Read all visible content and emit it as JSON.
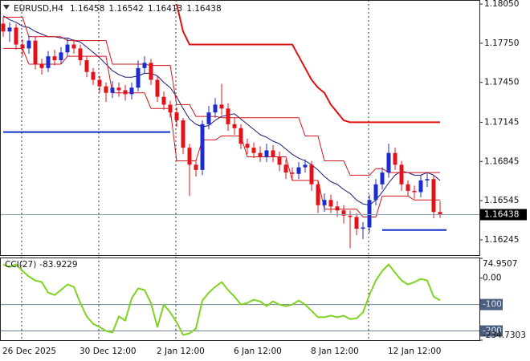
{
  "chart_data": [
    {
      "type": "candlestick",
      "symbol": "EURUSD,H4",
      "categories": [
        "26 Dec 2025",
        null,
        null,
        null,
        null,
        null,
        null,
        null,
        null,
        null,
        null,
        null,
        "30 Dec 12:00",
        null,
        null,
        null,
        null,
        null,
        null,
        null,
        null,
        null,
        null,
        null,
        "2 Jan 12:00",
        null,
        null,
        null,
        null,
        null,
        null,
        null,
        null,
        null,
        null,
        null,
        "6 Jan 12:00",
        null,
        null,
        null,
        null,
        null,
        null,
        null,
        null,
        null,
        null,
        null,
        "8 Jan 12:00",
        null,
        null,
        null,
        null,
        null,
        null,
        null,
        null,
        null,
        null,
        null,
        "12 Jan 12:00",
        null,
        null,
        null,
        null,
        null,
        null,
        null,
        null
      ],
      "open": [
        1.179,
        1.1784,
        1.1787,
        1.1774,
        1.1771,
        1.1777,
        1.1759,
        1.1756,
        1.1765,
        1.1762,
        1.1768,
        1.1774,
        1.1771,
        1.1762,
        1.1753,
        1.1747,
        1.1742,
        1.1737,
        1.1741,
        1.1739,
        1.1736,
        1.1741,
        1.1756,
        1.176,
        1.1747,
        1.1734,
        1.1728,
        1.1722,
        1.1716,
        1.1695,
        1.1682,
        1.1678,
        1.1713,
        1.1722,
        1.1728,
        1.1725,
        1.1713,
        1.171,
        1.1698,
        1.1695,
        1.1691,
        1.1688,
        1.1693,
        1.1688,
        1.1682,
        1.1676,
        1.1675,
        1.168,
        1.1682,
        1.1667,
        1.1651,
        1.1655,
        1.165,
        1.1647,
        1.1643,
        1.1642,
        1.1633,
        1.1634,
        1.1655,
        1.1667,
        1.1676,
        1.1691,
        1.1682,
        1.1667,
        1.1662,
        1.1661,
        1.167,
        1.1671,
        1.16458
      ],
      "high": [
        1.1795,
        1.1791,
        1.179,
        1.1778,
        1.1781,
        1.178,
        1.1763,
        1.1769,
        1.177,
        1.1772,
        1.1779,
        1.1778,
        1.1774,
        1.1765,
        1.1756,
        1.175,
        1.1745,
        1.1746,
        1.1745,
        1.1743,
        1.1745,
        1.1762,
        1.1765,
        1.1763,
        1.175,
        1.1738,
        1.1731,
        1.1726,
        1.1718,
        1.1698,
        1.1686,
        1.1716,
        1.1727,
        1.1733,
        1.1744,
        1.1729,
        1.1718,
        1.1713,
        1.1702,
        1.1699,
        1.1696,
        1.1698,
        1.1697,
        1.1692,
        1.1686,
        1.168,
        1.1684,
        1.1686,
        1.1685,
        1.167,
        1.166,
        1.1659,
        1.1654,
        1.1651,
        1.1647,
        1.1645,
        1.1638,
        1.1659,
        1.1671,
        1.168,
        1.1698,
        1.1695,
        1.1685,
        1.167,
        1.1666,
        1.1674,
        1.1676,
        1.1674,
        1.16542
      ],
      "low": [
        1.178,
        1.1776,
        1.177,
        1.1765,
        1.1767,
        1.1755,
        1.1751,
        1.1753,
        1.1758,
        1.1759,
        1.1765,
        1.1767,
        1.1758,
        1.1749,
        1.1743,
        1.1737,
        1.173,
        1.1733,
        1.1734,
        1.1731,
        1.1732,
        1.1738,
        1.1752,
        1.1743,
        1.173,
        1.1724,
        1.1718,
        1.1711,
        1.169,
        1.1658,
        1.1673,
        1.1674,
        1.1709,
        1.1718,
        1.172,
        1.1708,
        1.1705,
        1.1694,
        1.169,
        1.1687,
        1.1684,
        1.1684,
        1.1684,
        1.1677,
        1.1671,
        1.167,
        1.1671,
        1.1676,
        1.1662,
        1.1645,
        1.1646,
        1.1645,
        1.1642,
        1.1637,
        1.1618,
        1.1628,
        1.1625,
        1.163,
        1.1651,
        1.1663,
        1.1672,
        1.1678,
        1.1662,
        1.1658,
        1.1656,
        1.1657,
        1.1665,
        1.1641,
        1.16413
      ],
      "close": [
        1.1784,
        1.1787,
        1.1774,
        1.1771,
        1.1777,
        1.1759,
        1.1756,
        1.1765,
        1.1762,
        1.1768,
        1.1774,
        1.1771,
        1.1762,
        1.1753,
        1.1747,
        1.1742,
        1.1737,
        1.1741,
        1.1739,
        1.1736,
        1.1741,
        1.1756,
        1.176,
        1.1747,
        1.1734,
        1.1728,
        1.1722,
        1.1716,
        1.1695,
        1.1682,
        1.1678,
        1.1713,
        1.1722,
        1.1728,
        1.1725,
        1.1713,
        1.171,
        1.1698,
        1.1695,
        1.1691,
        1.1688,
        1.1693,
        1.1688,
        1.1682,
        1.1676,
        1.1675,
        1.168,
        1.1682,
        1.1667,
        1.1651,
        1.1655,
        1.165,
        1.1647,
        1.1643,
        1.1642,
        1.1633,
        1.1634,
        1.1655,
        1.1667,
        1.1676,
        1.1691,
        1.1682,
        1.1667,
        1.1662,
        1.1661,
        1.167,
        1.1671,
        1.16458,
        1.16438
      ],
      "up_color": "#1c2cd0",
      "down_color": "#e3121a",
      "overlays": [
        {
          "color": "#1a1a78",
          "width": 1,
          "values": [
            1.1796,
            1.1793,
            1.1791,
            1.1788,
            1.1787,
            1.1784,
            1.1782,
            1.178,
            1.178,
            1.1779,
            1.1779,
            1.1777,
            1.1776,
            1.1772,
            1.1768,
            1.1764,
            1.1759,
            1.1754,
            1.1751,
            1.1749,
            1.1749,
            1.175,
            1.1752,
            1.1752,
            1.175,
            1.1745,
            1.1741,
            1.1734,
            1.1725,
            1.1717,
            1.1713,
            1.1711,
            1.1712,
            1.1716,
            1.1719,
            1.172,
            1.1721,
            1.1717,
            1.1713,
            1.1709,
            1.1705,
            1.1703,
            1.17,
            1.1698,
            1.1694,
            1.169,
            1.1687,
            1.1685,
            1.1682,
            1.1678,
            1.1673,
            1.1669,
            1.1667,
            1.1663,
            1.166,
            1.1655,
            1.1652,
            1.1651,
            1.1655,
            1.1661,
            1.1668,
            1.1674,
            1.1677,
            1.1676,
            1.1674,
            1.1674,
            1.1676,
            1.1674,
            1.167
          ]
        },
        {
          "color": "#d4141c",
          "width": 1,
          "values": [
            1.1795,
            1.1795,
            1.1795,
            1.1795,
            1.178,
            1.178,
            1.178,
            1.178,
            1.178,
            1.178,
            1.1777,
            1.1777,
            1.1777,
            1.1777,
            1.1777,
            1.1777,
            1.1777,
            1.1759,
            1.1759,
            1.1759,
            1.1759,
            1.1759,
            1.1759,
            1.1758,
            1.1758,
            1.1758,
            1.1758,
            1.1728,
            1.1728,
            1.1728,
            1.1719,
            1.1719,
            1.1719,
            1.1719,
            1.1718,
            1.1718,
            1.1718,
            1.1718,
            1.1718,
            1.1718,
            1.1718,
            1.1718,
            1.1718,
            1.1718,
            1.1718,
            1.1718,
            1.1718,
            1.1704,
            1.1704,
            1.1704,
            1.1685,
            1.1685,
            1.1685,
            1.1685,
            1.1674,
            1.1674,
            1.1674,
            1.1674,
            1.1679,
            1.1679,
            1.1676,
            1.1676,
            1.1676,
            1.1676,
            1.1676,
            1.1676,
            1.1676,
            1.1676,
            1.1676
          ]
        },
        {
          "color": "#d4141c",
          "width": 1,
          "values": [
            1.1771,
            1.1771,
            1.1771,
            1.1771,
            1.1759,
            1.1759,
            1.1759,
            1.1759,
            1.1759,
            1.1759,
            1.1765,
            1.1765,
            1.1765,
            1.1765,
            1.1765,
            1.1765,
            1.1765,
            1.1737,
            1.1737,
            1.1737,
            1.1737,
            1.1737,
            1.1737,
            1.1725,
            1.1725,
            1.1725,
            1.1725,
            1.1685,
            1.1685,
            1.1685,
            1.1685,
            1.1701,
            1.1701,
            1.1701,
            1.1704,
            1.1704,
            1.1704,
            1.1704,
            1.1688,
            1.1688,
            1.1688,
            1.1688,
            1.1688,
            1.1688,
            1.1688,
            1.167,
            1.167,
            1.167,
            1.167,
            1.167,
            1.1648,
            1.1648,
            1.1648,
            1.1648,
            1.1648,
            1.1648,
            1.1642,
            1.1642,
            1.1642,
            1.1658,
            1.1658,
            1.1658,
            1.1658,
            1.1658,
            1.1655,
            1.1655,
            1.1655,
            1.1655,
            1.1655
          ]
        },
        {
          "color": "#e01010",
          "width": 2,
          "values": [
            null,
            null,
            null,
            null,
            null,
            null,
            null,
            null,
            null,
            null,
            null,
            null,
            null,
            null,
            null,
            null,
            null,
            null,
            null,
            null,
            null,
            null,
            null,
            null,
            null,
            null,
            null,
            1.1805,
            1.1784,
            1.1774,
            1.1774,
            1.1774,
            1.1774,
            1.1774,
            1.1774,
            1.1774,
            1.1774,
            1.1774,
            1.1774,
            1.1774,
            1.1774,
            1.1774,
            1.1774,
            1.1774,
            1.1774,
            1.1774,
            1.1765,
            1.1756,
            1.1747,
            1.1741,
            1.1737,
            1.1728,
            1.1722,
            1.1716,
            1.17145,
            1.17145,
            1.17145,
            1.17145,
            1.17145,
            1.17145,
            1.17145,
            1.17145,
            1.17145,
            1.17145,
            1.17145,
            1.17145,
            1.17145,
            1.17145,
            1.17145
          ]
        },
        {
          "color": "#1030c8",
          "width": 2,
          "values": [
            1.1707,
            1.1707,
            1.1707,
            1.1707,
            1.1707,
            1.1707,
            1.1707,
            1.1707,
            1.1707,
            1.1707,
            1.1707,
            1.1707,
            1.1707,
            1.1707,
            1.1707,
            1.1707,
            1.1707,
            1.1707,
            1.1707,
            1.1707,
            1.1707,
            1.1707,
            1.1707,
            1.1707,
            1.1707,
            1.1707,
            1.1707,
            null,
            null,
            null,
            null,
            null,
            null,
            null,
            null,
            null,
            null,
            null,
            null,
            null,
            null,
            null,
            null,
            null,
            null,
            null,
            null,
            null,
            null,
            null,
            null,
            null,
            null,
            null,
            null,
            null,
            null,
            null,
            null,
            1.1632,
            1.1632,
            1.1632,
            1.1632,
            1.1632,
            1.1632,
            1.1632,
            1.1632,
            1.1632,
            1.1632,
            1.1632
          ]
        }
      ],
      "ylim": [
        1.16128,
        1.18081
      ],
      "yticks": [
        {
          "value": 1.1805,
          "label": "1.18050"
        },
        {
          "value": 1.1775,
          "label": "1.17750"
        },
        {
          "value": 1.1745,
          "label": "1.17450"
        },
        1.17145,
        1.16845,
        1.16545,
        1.16245
      ]
    },
    {
      "type": "line",
      "title": "CCI(27)",
      "series": [
        {
          "color": "#7ed321",
          "values": [
            51,
            42,
            52,
            27,
            6,
            -9,
            -15,
            -55,
            -64,
            -45,
            -24,
            -33,
            -94,
            -145,
            -173,
            -185,
            -200,
            -206,
            -145,
            -161,
            -76,
            -39,
            -45,
            -94,
            -185,
            -100,
            -130,
            -167,
            -215,
            -209,
            -191,
            -85,
            -55,
            -33,
            -15,
            -45,
            -70,
            -100,
            -94,
            -82,
            -88,
            -106,
            -88,
            -100,
            -106,
            -100,
            -85,
            -100,
            -124,
            -148,
            -148,
            -142,
            -148,
            -142,
            -155,
            -152,
            -130,
            -64,
            -9,
            27,
            52,
            21,
            -9,
            -24,
            -15,
            -3,
            -9,
            -70,
            -83.9229
          ]
        }
      ],
      "ylim": [
        -234.7303,
        74.9507
      ],
      "yticks": [
        74.9507,
        {
          "value": 0,
          "label": "0.00"
        },
        -100,
        -200,
        -234.7303
      ],
      "levels": [
        -100,
        -200
      ]
    }
  ]
}
